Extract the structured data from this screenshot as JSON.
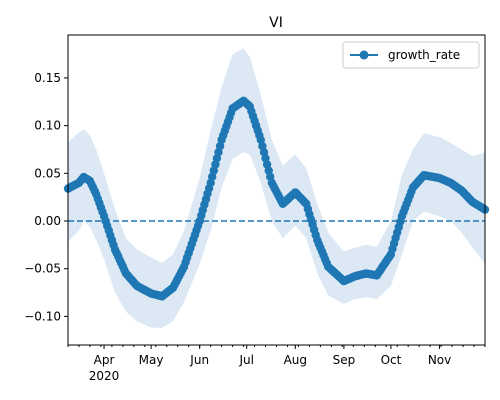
{
  "chart_data": {
    "type": "line",
    "title": "VI",
    "xlabel": "",
    "ylabel": "",
    "x_start": "2020-03-09",
    "x_end": "2020-11-30",
    "xlim": [
      "2020-03-09",
      "2020-11-30"
    ],
    "ylim": [
      -0.13,
      0.195
    ],
    "grid": false,
    "legend_position": "top-right",
    "x_ticks": [
      {
        "date": "2020-04-01",
        "label": "Apr",
        "sublabel": "2020"
      },
      {
        "date": "2020-05-01",
        "label": "May"
      },
      {
        "date": "2020-06-01",
        "label": "Jun"
      },
      {
        "date": "2020-07-01",
        "label": "Jul"
      },
      {
        "date": "2020-08-01",
        "label": "Aug"
      },
      {
        "date": "2020-09-01",
        "label": "Sep"
      },
      {
        "date": "2020-10-01",
        "label": "Oct"
      },
      {
        "date": "2020-11-01",
        "label": "Nov"
      }
    ],
    "y_ticks": [
      {
        "value": -0.1,
        "label": "−0.10"
      },
      {
        "value": -0.05,
        "label": "−0.05"
      },
      {
        "value": 0.0,
        "label": "0.00"
      },
      {
        "value": 0.05,
        "label": "0.05"
      },
      {
        "value": 0.1,
        "label": "0.10"
      },
      {
        "value": 0.15,
        "label": "0.15"
      }
    ],
    "reference_line": {
      "y": 0.0,
      "style": "dashed",
      "color": "#1f77b4"
    },
    "series": [
      {
        "name": "growth_rate",
        "color": "#1f77b4",
        "band_color": "#dce9f5",
        "marker": "circle",
        "points": [
          {
            "x": "2020-03-09",
            "y": 0.034,
            "lo": -0.022,
            "hi": 0.082
          },
          {
            "x": "2020-03-16",
            "y": 0.04,
            "lo": -0.01,
            "hi": 0.093
          },
          {
            "x": "2020-03-19",
            "y": 0.046,
            "lo": 0.0,
            "hi": 0.096
          },
          {
            "x": "2020-03-23",
            "y": 0.042,
            "lo": -0.006,
            "hi": 0.09
          },
          {
            "x": "2020-03-27",
            "y": 0.028,
            "lo": -0.02,
            "hi": 0.075
          },
          {
            "x": "2020-04-01",
            "y": 0.005,
            "lo": -0.04,
            "hi": 0.05
          },
          {
            "x": "2020-04-08",
            "y": -0.03,
            "lo": -0.075,
            "hi": 0.012
          },
          {
            "x": "2020-04-15",
            "y": -0.055,
            "lo": -0.095,
            "hi": -0.018
          },
          {
            "x": "2020-04-22",
            "y": -0.068,
            "lo": -0.105,
            "hi": -0.03
          },
          {
            "x": "2020-05-01",
            "y": -0.076,
            "lo": -0.112,
            "hi": -0.038
          },
          {
            "x": "2020-05-08",
            "y": -0.079,
            "lo": -0.112,
            "hi": -0.044
          },
          {
            "x": "2020-05-15",
            "y": -0.07,
            "lo": -0.105,
            "hi": -0.035
          },
          {
            "x": "2020-05-22",
            "y": -0.048,
            "lo": -0.085,
            "hi": -0.01
          },
          {
            "x": "2020-06-01",
            "y": 0.0,
            "lo": -0.045,
            "hi": 0.045
          },
          {
            "x": "2020-06-08",
            "y": 0.04,
            "lo": -0.01,
            "hi": 0.095
          },
          {
            "x": "2020-06-15",
            "y": 0.085,
            "lo": 0.035,
            "hi": 0.14
          },
          {
            "x": "2020-06-22",
            "y": 0.118,
            "lo": 0.065,
            "hi": 0.175
          },
          {
            "x": "2020-06-29",
            "y": 0.126,
            "lo": 0.072,
            "hi": 0.181
          },
          {
            "x": "2020-07-03",
            "y": 0.12,
            "lo": 0.07,
            "hi": 0.172
          },
          {
            "x": "2020-07-10",
            "y": 0.085,
            "lo": 0.04,
            "hi": 0.132
          },
          {
            "x": "2020-07-17",
            "y": 0.04,
            "lo": 0.0,
            "hi": 0.085
          },
          {
            "x": "2020-07-24",
            "y": 0.018,
            "lo": -0.018,
            "hi": 0.058
          },
          {
            "x": "2020-08-01",
            "y": 0.03,
            "lo": -0.005,
            "hi": 0.07
          },
          {
            "x": "2020-08-08",
            "y": 0.018,
            "lo": -0.018,
            "hi": 0.055
          },
          {
            "x": "2020-08-15",
            "y": -0.02,
            "lo": -0.055,
            "hi": 0.018
          },
          {
            "x": "2020-08-22",
            "y": -0.048,
            "lo": -0.078,
            "hi": -0.012
          },
          {
            "x": "2020-09-01",
            "y": -0.063,
            "lo": -0.087,
            "hi": -0.032
          },
          {
            "x": "2020-09-08",
            "y": -0.058,
            "lo": -0.082,
            "hi": -0.028
          },
          {
            "x": "2020-09-15",
            "y": -0.055,
            "lo": -0.08,
            "hi": -0.025
          },
          {
            "x": "2020-09-22",
            "y": -0.057,
            "lo": -0.082,
            "hi": -0.027
          },
          {
            "x": "2020-10-01",
            "y": -0.035,
            "lo": -0.068,
            "hi": 0.0
          },
          {
            "x": "2020-10-08",
            "y": 0.005,
            "lo": -0.035,
            "hi": 0.048
          },
          {
            "x": "2020-10-15",
            "y": 0.035,
            "lo": 0.0,
            "hi": 0.075
          },
          {
            "x": "2020-10-22",
            "y": 0.048,
            "lo": 0.01,
            "hi": 0.092
          },
          {
            "x": "2020-11-01",
            "y": 0.045,
            "lo": 0.005,
            "hi": 0.088
          },
          {
            "x": "2020-11-08",
            "y": 0.04,
            "lo": 0.0,
            "hi": 0.082
          },
          {
            "x": "2020-11-15",
            "y": 0.032,
            "lo": -0.012,
            "hi": 0.075
          },
          {
            "x": "2020-11-22",
            "y": 0.02,
            "lo": -0.028,
            "hi": 0.068
          },
          {
            "x": "2020-11-30",
            "y": 0.012,
            "lo": -0.045,
            "hi": 0.072
          }
        ]
      }
    ]
  }
}
